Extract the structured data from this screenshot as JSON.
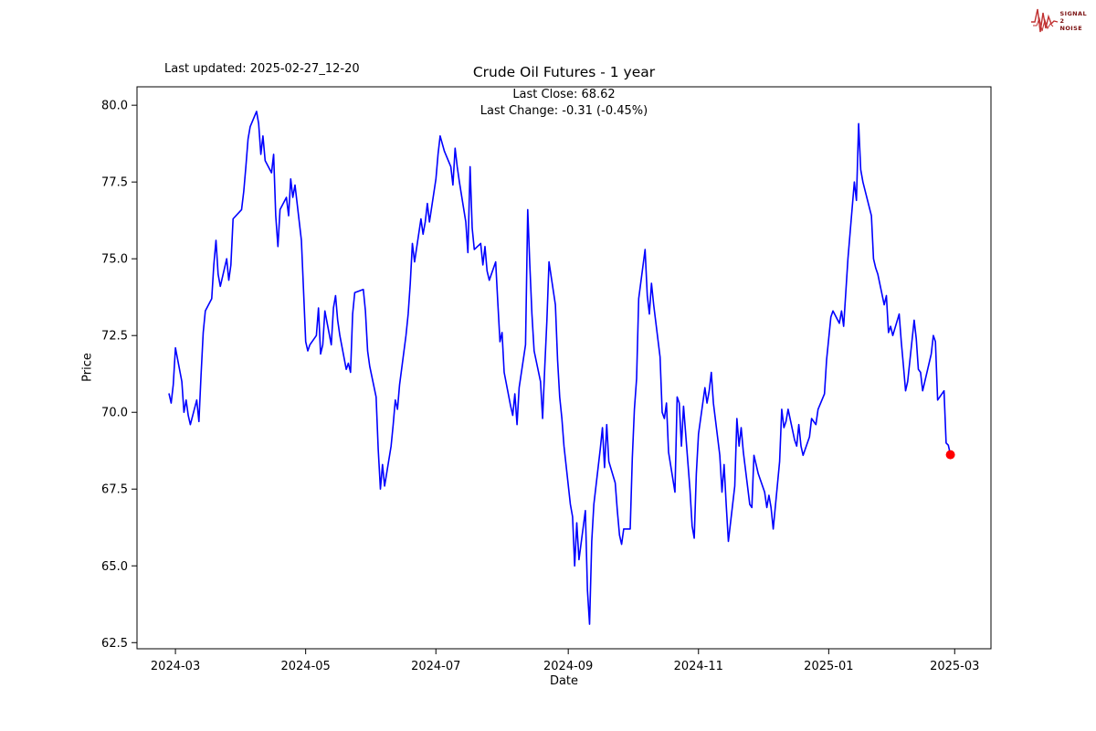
{
  "logo": {
    "line1": "SIGNAL",
    "line2": "2",
    "line3": "NOISE",
    "text_color": "#7a1010",
    "wave_color": "#c03030"
  },
  "chart_data": {
    "type": "line",
    "title": "Crude Oil Futures - 1 year",
    "xlabel": "Date",
    "ylabel": "Price",
    "annotations": {
      "last_updated": "Last updated: 2025-02-27_12-20",
      "last_close": "Last Close: 68.62",
      "last_change": "Last Change: -0.31 (-0.45%)"
    },
    "line_color": "#0000ff",
    "marker_color": "#ff0000",
    "grid": false,
    "legend": "none",
    "xlim": [
      "2024-02-12",
      "2025-03-18"
    ],
    "ylim": [
      62.3,
      80.6
    ],
    "y_ticks": [
      62.5,
      65.0,
      67.5,
      70.0,
      72.5,
      75.0,
      77.5,
      80.0
    ],
    "x_ticks": [
      {
        "date": "2024-03-01",
        "label": "2024-03"
      },
      {
        "date": "2024-05-01",
        "label": "2024-05"
      },
      {
        "date": "2024-07-01",
        "label": "2024-07"
      },
      {
        "date": "2024-09-01",
        "label": "2024-09"
      },
      {
        "date": "2024-11-01",
        "label": "2024-11"
      },
      {
        "date": "2025-01-01",
        "label": "2025-01"
      },
      {
        "date": "2025-03-01",
        "label": "2025-03"
      }
    ],
    "series": [
      {
        "name": "Crude Oil Futures",
        "points": [
          [
            "2024-02-27",
            70.6
          ],
          [
            "2024-02-28",
            70.3
          ],
          [
            "2024-02-29",
            70.9
          ],
          [
            "2024-03-01",
            72.1
          ],
          [
            "2024-03-04",
            71.0
          ],
          [
            "2024-03-05",
            70.0
          ],
          [
            "2024-03-06",
            70.4
          ],
          [
            "2024-03-07",
            69.9
          ],
          [
            "2024-03-08",
            69.6
          ],
          [
            "2024-03-11",
            70.4
          ],
          [
            "2024-03-12",
            69.7
          ],
          [
            "2024-03-13",
            71.2
          ],
          [
            "2024-03-14",
            72.6
          ],
          [
            "2024-03-15",
            73.3
          ],
          [
            "2024-03-18",
            73.7
          ],
          [
            "2024-03-19",
            74.8
          ],
          [
            "2024-03-20",
            75.6
          ],
          [
            "2024-03-21",
            74.5
          ],
          [
            "2024-03-22",
            74.1
          ],
          [
            "2024-03-25",
            75.0
          ],
          [
            "2024-03-26",
            74.3
          ],
          [
            "2024-03-27",
            74.8
          ],
          [
            "2024-03-28",
            76.3
          ],
          [
            "2024-04-01",
            76.6
          ],
          [
            "2024-04-02",
            77.2
          ],
          [
            "2024-04-03",
            78.0
          ],
          [
            "2024-04-04",
            78.9
          ],
          [
            "2024-04-05",
            79.3
          ],
          [
            "2024-04-08",
            79.8
          ],
          [
            "2024-04-09",
            79.4
          ],
          [
            "2024-04-10",
            78.4
          ],
          [
            "2024-04-11",
            79.0
          ],
          [
            "2024-04-12",
            78.2
          ],
          [
            "2024-04-15",
            77.8
          ],
          [
            "2024-04-16",
            78.4
          ],
          [
            "2024-04-17",
            76.4
          ],
          [
            "2024-04-18",
            75.4
          ],
          [
            "2024-04-19",
            76.6
          ],
          [
            "2024-04-22",
            77.0
          ],
          [
            "2024-04-23",
            76.4
          ],
          [
            "2024-04-24",
            77.6
          ],
          [
            "2024-04-25",
            77.0
          ],
          [
            "2024-04-26",
            77.4
          ],
          [
            "2024-04-29",
            75.6
          ],
          [
            "2024-04-30",
            74.0
          ],
          [
            "2024-05-01",
            72.3
          ],
          [
            "2024-05-02",
            72.0
          ],
          [
            "2024-05-03",
            72.2
          ],
          [
            "2024-05-06",
            72.5
          ],
          [
            "2024-05-07",
            73.4
          ],
          [
            "2024-05-08",
            71.9
          ],
          [
            "2024-05-09",
            72.2
          ],
          [
            "2024-05-10",
            73.3
          ],
          [
            "2024-05-13",
            72.2
          ],
          [
            "2024-05-14",
            73.4
          ],
          [
            "2024-05-15",
            73.8
          ],
          [
            "2024-05-16",
            73.0
          ],
          [
            "2024-05-17",
            72.5
          ],
          [
            "2024-05-20",
            71.4
          ],
          [
            "2024-05-21",
            71.6
          ],
          [
            "2024-05-22",
            71.3
          ],
          [
            "2024-05-23",
            73.2
          ],
          [
            "2024-05-24",
            73.9
          ],
          [
            "2024-05-28",
            74.0
          ],
          [
            "2024-05-29",
            73.3
          ],
          [
            "2024-05-30",
            72.0
          ],
          [
            "2024-05-31",
            71.5
          ],
          [
            "2024-06-03",
            70.5
          ],
          [
            "2024-06-04",
            68.8
          ],
          [
            "2024-06-05",
            67.5
          ],
          [
            "2024-06-06",
            68.3
          ],
          [
            "2024-06-07",
            67.6
          ],
          [
            "2024-06-10",
            68.9
          ],
          [
            "2024-06-11",
            69.6
          ],
          [
            "2024-06-12",
            70.4
          ],
          [
            "2024-06-13",
            70.1
          ],
          [
            "2024-06-14",
            70.9
          ],
          [
            "2024-06-17",
            72.5
          ],
          [
            "2024-06-18",
            73.2
          ],
          [
            "2024-06-19",
            74.2
          ],
          [
            "2024-06-20",
            75.5
          ],
          [
            "2024-06-21",
            74.9
          ],
          [
            "2024-06-24",
            76.3
          ],
          [
            "2024-06-25",
            75.8
          ],
          [
            "2024-06-26",
            76.2
          ],
          [
            "2024-06-27",
            76.8
          ],
          [
            "2024-06-28",
            76.2
          ],
          [
            "2024-07-01",
            77.6
          ],
          [
            "2024-07-02",
            78.4
          ],
          [
            "2024-07-03",
            79.0
          ],
          [
            "2024-07-05",
            78.5
          ],
          [
            "2024-07-08",
            78.0
          ],
          [
            "2024-07-09",
            77.4
          ],
          [
            "2024-07-10",
            78.6
          ],
          [
            "2024-07-11",
            78.0
          ],
          [
            "2024-07-12",
            77.5
          ],
          [
            "2024-07-15",
            76.2
          ],
          [
            "2024-07-16",
            75.2
          ],
          [
            "2024-07-17",
            78.0
          ],
          [
            "2024-07-18",
            76.0
          ],
          [
            "2024-07-19",
            75.3
          ],
          [
            "2024-07-22",
            75.5
          ],
          [
            "2024-07-23",
            74.8
          ],
          [
            "2024-07-24",
            75.4
          ],
          [
            "2024-07-25",
            74.6
          ],
          [
            "2024-07-26",
            74.3
          ],
          [
            "2024-07-29",
            74.9
          ],
          [
            "2024-07-30",
            73.6
          ],
          [
            "2024-07-31",
            72.3
          ],
          [
            "2024-08-01",
            72.6
          ],
          [
            "2024-08-02",
            71.3
          ],
          [
            "2024-08-05",
            70.2
          ],
          [
            "2024-08-06",
            69.9
          ],
          [
            "2024-08-07",
            70.6
          ],
          [
            "2024-08-08",
            69.6
          ],
          [
            "2024-08-09",
            70.8
          ],
          [
            "2024-08-12",
            72.2
          ],
          [
            "2024-08-13",
            76.6
          ],
          [
            "2024-08-14",
            74.8
          ],
          [
            "2024-08-15",
            73.2
          ],
          [
            "2024-08-16",
            72.0
          ],
          [
            "2024-08-19",
            71.0
          ],
          [
            "2024-08-20",
            69.8
          ],
          [
            "2024-08-21",
            71.5
          ],
          [
            "2024-08-22",
            73.0
          ],
          [
            "2024-08-23",
            74.9
          ],
          [
            "2024-08-26",
            73.5
          ],
          [
            "2024-08-27",
            71.7
          ],
          [
            "2024-08-28",
            70.5
          ],
          [
            "2024-08-29",
            69.8
          ],
          [
            "2024-08-30",
            68.9
          ],
          [
            "2024-09-02",
            67.0
          ],
          [
            "2024-09-03",
            66.6
          ],
          [
            "2024-09-04",
            65.0
          ],
          [
            "2024-09-05",
            66.4
          ],
          [
            "2024-09-06",
            65.2
          ],
          [
            "2024-09-09",
            66.8
          ],
          [
            "2024-09-10",
            64.2
          ],
          [
            "2024-09-11",
            63.1
          ],
          [
            "2024-09-12",
            65.8
          ],
          [
            "2024-09-13",
            67.0
          ],
          [
            "2024-09-16",
            68.8
          ],
          [
            "2024-09-17",
            69.5
          ],
          [
            "2024-09-18",
            68.2
          ],
          [
            "2024-09-19",
            69.6
          ],
          [
            "2024-09-20",
            68.4
          ],
          [
            "2024-09-23",
            67.7
          ],
          [
            "2024-09-24",
            66.8
          ],
          [
            "2024-09-25",
            66.0
          ],
          [
            "2024-09-26",
            65.7
          ],
          [
            "2024-09-27",
            66.2
          ],
          [
            "2024-09-30",
            66.2
          ],
          [
            "2024-10-01",
            68.5
          ],
          [
            "2024-10-02",
            70.1
          ],
          [
            "2024-10-03",
            71.1
          ],
          [
            "2024-10-04",
            73.7
          ],
          [
            "2024-10-07",
            75.3
          ],
          [
            "2024-10-08",
            73.8
          ],
          [
            "2024-10-09",
            73.2
          ],
          [
            "2024-10-10",
            74.2
          ],
          [
            "2024-10-11",
            73.5
          ],
          [
            "2024-10-14",
            71.8
          ],
          [
            "2024-10-15",
            70.0
          ],
          [
            "2024-10-16",
            69.8
          ],
          [
            "2024-10-17",
            70.3
          ],
          [
            "2024-10-18",
            68.7
          ],
          [
            "2024-10-21",
            67.4
          ],
          [
            "2024-10-22",
            70.5
          ],
          [
            "2024-10-23",
            70.3
          ],
          [
            "2024-10-24",
            68.9
          ],
          [
            "2024-10-25",
            70.2
          ],
          [
            "2024-10-28",
            67.5
          ],
          [
            "2024-10-29",
            66.3
          ],
          [
            "2024-10-30",
            65.9
          ],
          [
            "2024-10-31",
            68.0
          ],
          [
            "2024-11-01",
            69.3
          ],
          [
            "2024-11-04",
            70.8
          ],
          [
            "2024-11-05",
            70.3
          ],
          [
            "2024-11-06",
            70.7
          ],
          [
            "2024-11-07",
            71.3
          ],
          [
            "2024-11-08",
            70.3
          ],
          [
            "2024-11-11",
            68.6
          ],
          [
            "2024-11-12",
            67.4
          ],
          [
            "2024-11-13",
            68.3
          ],
          [
            "2024-11-14",
            67.0
          ],
          [
            "2024-11-15",
            65.8
          ],
          [
            "2024-11-18",
            67.6
          ],
          [
            "2024-11-19",
            69.8
          ],
          [
            "2024-11-20",
            68.9
          ],
          [
            "2024-11-21",
            69.5
          ],
          [
            "2024-11-22",
            68.7
          ],
          [
            "2024-11-25",
            67.0
          ],
          [
            "2024-11-26",
            66.9
          ],
          [
            "2024-11-27",
            68.6
          ],
          [
            "2024-11-29",
            68.0
          ],
          [
            "2024-12-02",
            67.4
          ],
          [
            "2024-12-03",
            66.9
          ],
          [
            "2024-12-04",
            67.3
          ],
          [
            "2024-12-05",
            66.9
          ],
          [
            "2024-12-06",
            66.2
          ],
          [
            "2024-12-09",
            68.4
          ],
          [
            "2024-12-10",
            70.1
          ],
          [
            "2024-12-11",
            69.5
          ],
          [
            "2024-12-12",
            69.7
          ],
          [
            "2024-12-13",
            70.1
          ],
          [
            "2024-12-16",
            69.1
          ],
          [
            "2024-12-17",
            68.9
          ],
          [
            "2024-12-18",
            69.6
          ],
          [
            "2024-12-19",
            68.9
          ],
          [
            "2024-12-20",
            68.6
          ],
          [
            "2024-12-23",
            69.2
          ],
          [
            "2024-12-24",
            69.8
          ],
          [
            "2024-12-26",
            69.6
          ],
          [
            "2024-12-27",
            70.1
          ],
          [
            "2024-12-30",
            70.6
          ],
          [
            "2024-12-31",
            71.7
          ],
          [
            "2025-01-02",
            73.1
          ],
          [
            "2025-01-03",
            73.3
          ],
          [
            "2025-01-06",
            72.9
          ],
          [
            "2025-01-07",
            73.3
          ],
          [
            "2025-01-08",
            72.8
          ],
          [
            "2025-01-10",
            75.0
          ],
          [
            "2025-01-13",
            77.5
          ],
          [
            "2025-01-14",
            76.9
          ],
          [
            "2025-01-15",
            79.4
          ],
          [
            "2025-01-16",
            77.9
          ],
          [
            "2025-01-17",
            77.5
          ],
          [
            "2025-01-21",
            76.4
          ],
          [
            "2025-01-22",
            75.0
          ],
          [
            "2025-01-23",
            74.7
          ],
          [
            "2025-01-24",
            74.5
          ],
          [
            "2025-01-27",
            73.5
          ],
          [
            "2025-01-28",
            73.8
          ],
          [
            "2025-01-29",
            72.6
          ],
          [
            "2025-01-30",
            72.8
          ],
          [
            "2025-01-31",
            72.5
          ],
          [
            "2025-02-03",
            73.2
          ],
          [
            "2025-02-04",
            72.3
          ],
          [
            "2025-02-05",
            71.5
          ],
          [
            "2025-02-06",
            70.7
          ],
          [
            "2025-02-07",
            71.0
          ],
          [
            "2025-02-10",
            73.0
          ],
          [
            "2025-02-11",
            72.4
          ],
          [
            "2025-02-12",
            71.4
          ],
          [
            "2025-02-13",
            71.3
          ],
          [
            "2025-02-14",
            70.7
          ],
          [
            "2025-02-18",
            71.9
          ],
          [
            "2025-02-19",
            72.5
          ],
          [
            "2025-02-20",
            72.3
          ],
          [
            "2025-02-21",
            70.4
          ],
          [
            "2025-02-24",
            70.7
          ],
          [
            "2025-02-25",
            69.0
          ],
          [
            "2025-02-26",
            68.93
          ],
          [
            "2025-02-27",
            68.62
          ]
        ]
      }
    ],
    "last_point": {
      "date": "2025-02-27",
      "value": 68.62
    }
  }
}
